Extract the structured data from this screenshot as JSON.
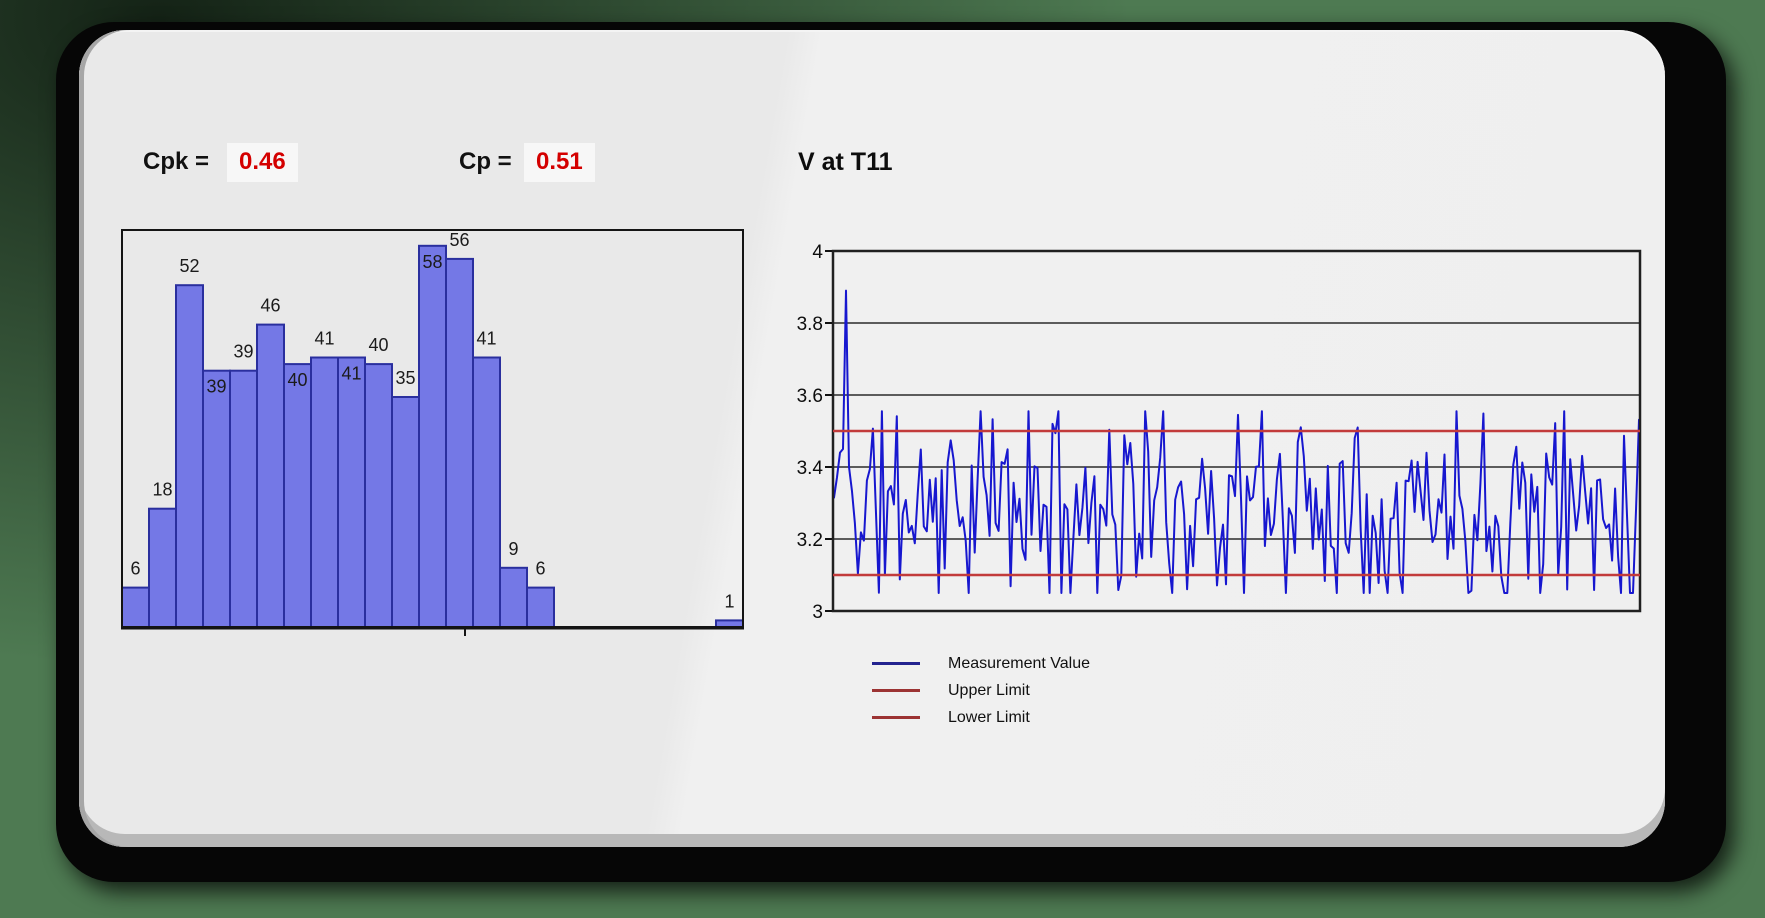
{
  "header": {
    "cpk_label": "Cpk =",
    "cpk_value": "0.46",
    "cp_label": "Cp =",
    "cp_value": "0.51",
    "value_color": "#d40000"
  },
  "run_chart_title": "V at T11",
  "legend": {
    "items": [
      {
        "label": "Measurement Value",
        "color": "#23238f"
      },
      {
        "label": "Upper Limit",
        "color": "#9c3333"
      },
      {
        "label": "Lower Limit",
        "color": "#9c3333"
      }
    ]
  },
  "chart_data": [
    {
      "type": "bar",
      "name": "histogram-of-measurements",
      "title": "",
      "xlabel": "",
      "ylabel": "",
      "bin_counts": [
        6,
        18,
        52,
        39,
        39,
        46,
        40,
        41,
        41,
        40,
        35,
        58,
        56,
        41,
        9,
        6,
        0,
        0,
        0,
        0,
        0,
        0,
        1
      ],
      "bar_count_labels": [
        "6",
        "18",
        "52",
        "39",
        "39",
        "46",
        "40",
        "41",
        "41",
        "40",
        "35",
        "58",
        "56",
        "41",
        "9",
        "6",
        "",
        "",
        "",
        "",
        "",
        "",
        "1"
      ],
      "label_placement": [
        "above",
        "above",
        "above",
        "inside",
        "above",
        "above",
        "inside",
        "above",
        "inside",
        "above",
        "above",
        "inside",
        "above",
        "above",
        "above",
        "above",
        "",
        "",
        "",
        "",
        "",
        "",
        "above"
      ],
      "ylim": [
        0,
        60.4
      ],
      "grid": false,
      "bar_fill": "#7478e6",
      "bar_stroke": "#2a2f9e",
      "axis_color": "#141414",
      "label_color": "#1b1b1b"
    },
    {
      "type": "line",
      "name": "measurement-run-chart",
      "title": "V at T11",
      "xlabel": "",
      "ylabel": "",
      "ylim": [
        3,
        4
      ],
      "yticks": [
        4,
        3.8,
        3.6,
        3.4,
        3.2,
        3
      ],
      "ytick_labels": [
        "4",
        "3.8",
        "3.6",
        "3.4",
        "3.2",
        "3"
      ],
      "grid": true,
      "upper_limit": 3.5,
      "lower_limit": 3.1,
      "limit_color": "#c23b3b",
      "line_color": "#1717cf",
      "grid_color": "#2b2b2b",
      "series_name": "Measurement Value",
      "signal": {
        "n": 270,
        "seed": 11,
        "base": 3.3,
        "spread": 0.36,
        "min": 3.05,
        "max": 3.555,
        "spike_index": 4,
        "spike_value": 3.89,
        "spike_neighbors": 3.45,
        "note": "dense noisy measurement series between ~3.05 and ~3.55 with an initial spike to ~3.9"
      }
    }
  ],
  "colors": {
    "background_green": "#4e7a52",
    "panel": "#ededed",
    "panel_shadow": "#060606",
    "value_box": "#f7f7f7"
  }
}
